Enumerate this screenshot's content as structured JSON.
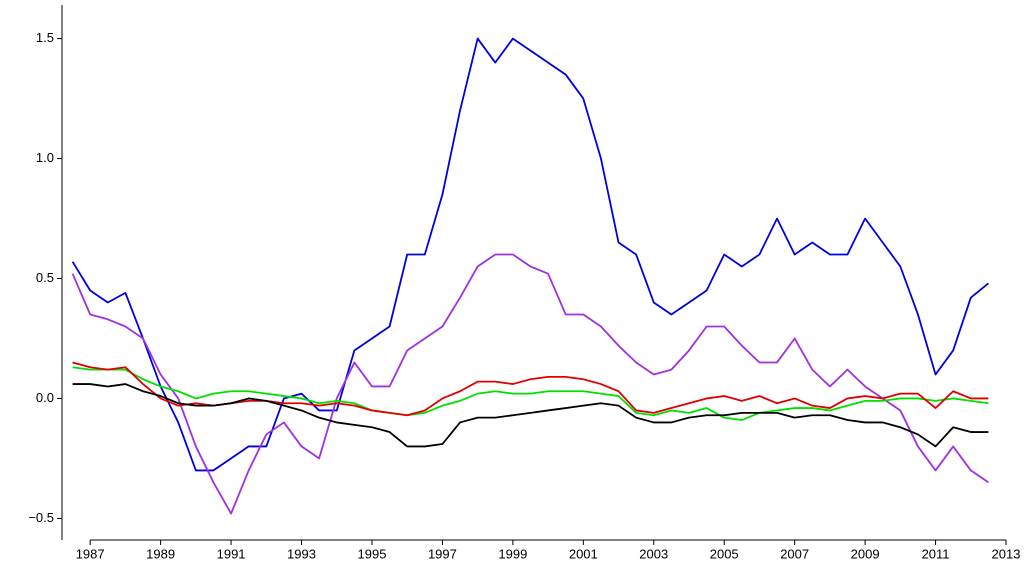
{
  "chart_data": {
    "type": "line",
    "x": [
      1986.5,
      1987.0,
      1987.5,
      1988.0,
      1988.5,
      1989.0,
      1989.5,
      1990.0,
      1990.5,
      1991.0,
      1991.5,
      1992.0,
      1992.5,
      1993.0,
      1993.5,
      1994.0,
      1994.5,
      1995.0,
      1995.5,
      1996.0,
      1996.5,
      1997.0,
      1997.5,
      1998.0,
      1998.5,
      1999.0,
      1999.5,
      2000.0,
      2000.5,
      2001.0,
      2001.5,
      2002.0,
      2002.5,
      2003.0,
      2003.5,
      2004.0,
      2004.5,
      2005.0,
      2005.5,
      2006.0,
      2006.5,
      2007.0,
      2007.5,
      2008.0,
      2008.5,
      2009.0,
      2009.5,
      2010.0,
      2010.5,
      2011.0,
      2011.5,
      2012.0,
      2012.5
    ],
    "series": [
      {
        "color": "#0000e0",
        "values": [
          0.57,
          0.45,
          0.4,
          0.44,
          0.25,
          0.05,
          -0.1,
          -0.3,
          -0.3,
          -0.25,
          -0.2,
          -0.2,
          0.0,
          0.02,
          -0.05,
          -0.05,
          0.2,
          0.25,
          0.3,
          0.6,
          0.6,
          0.85,
          1.2,
          1.5,
          1.4,
          1.5,
          1.45,
          1.4,
          1.35,
          1.25,
          1.0,
          0.65,
          0.6,
          0.4,
          0.35,
          0.4,
          0.45,
          0.6,
          0.55,
          0.6,
          0.75,
          0.6,
          0.65,
          0.6,
          0.6,
          0.75,
          0.65,
          0.55,
          0.35,
          0.1,
          0.2,
          0.42,
          0.48
        ]
      },
      {
        "color": "#a030e0",
        "values": [
          0.52,
          0.35,
          0.33,
          0.3,
          0.25,
          0.1,
          0.0,
          -0.2,
          -0.35,
          -0.48,
          -0.3,
          -0.15,
          -0.1,
          -0.2,
          -0.25,
          0.0,
          0.15,
          0.05,
          0.05,
          0.2,
          0.25,
          0.3,
          0.42,
          0.55,
          0.6,
          0.6,
          0.55,
          0.52,
          0.35,
          0.35,
          0.3,
          0.22,
          0.15,
          0.1,
          0.12,
          0.2,
          0.3,
          0.3,
          0.22,
          0.15,
          0.15,
          0.25,
          0.12,
          0.05,
          0.12,
          0.05,
          0.0,
          -0.05,
          -0.2,
          -0.3,
          -0.2,
          -0.3,
          -0.35
        ]
      },
      {
        "color": "#00e000",
        "values": [
          0.13,
          0.12,
          0.12,
          0.12,
          0.08,
          0.05,
          0.03,
          0.0,
          0.02,
          0.03,
          0.03,
          0.02,
          0.01,
          0.0,
          -0.02,
          -0.01,
          -0.02,
          -0.05,
          -0.06,
          -0.07,
          -0.06,
          -0.03,
          -0.01,
          0.02,
          0.03,
          0.02,
          0.02,
          0.03,
          0.03,
          0.03,
          0.02,
          0.01,
          -0.06,
          -0.07,
          -0.05,
          -0.06,
          -0.04,
          -0.08,
          -0.09,
          -0.06,
          -0.05,
          -0.04,
          -0.04,
          -0.05,
          -0.03,
          -0.01,
          -0.01,
          0.0,
          0.0,
          -0.01,
          0.0,
          -0.01,
          -0.02
        ]
      },
      {
        "color": "#e00000",
        "values": [
          0.15,
          0.13,
          0.12,
          0.13,
          0.06,
          0.0,
          -0.03,
          -0.02,
          -0.03,
          -0.02,
          -0.01,
          -0.01,
          -0.02,
          -0.02,
          -0.03,
          -0.02,
          -0.03,
          -0.05,
          -0.06,
          -0.07,
          -0.05,
          0.0,
          0.03,
          0.07,
          0.07,
          0.06,
          0.08,
          0.09,
          0.09,
          0.08,
          0.06,
          0.03,
          -0.05,
          -0.06,
          -0.04,
          -0.02,
          0.0,
          0.01,
          -0.01,
          0.01,
          -0.02,
          0.0,
          -0.03,
          -0.04,
          0.0,
          0.01,
          0.0,
          0.02,
          0.02,
          -0.04,
          0.03,
          0.0,
          0.0
        ]
      },
      {
        "color": "#000000",
        "values": [
          0.06,
          0.06,
          0.05,
          0.06,
          0.03,
          0.01,
          -0.02,
          -0.03,
          -0.03,
          -0.02,
          0.0,
          -0.01,
          -0.03,
          -0.05,
          -0.08,
          -0.1,
          -0.11,
          -0.12,
          -0.14,
          -0.2,
          -0.2,
          -0.19,
          -0.1,
          -0.08,
          -0.08,
          -0.07,
          -0.06,
          -0.05,
          -0.04,
          -0.03,
          -0.02,
          -0.03,
          -0.08,
          -0.1,
          -0.1,
          -0.08,
          -0.07,
          -0.07,
          -0.06,
          -0.06,
          -0.06,
          -0.08,
          -0.07,
          -0.07,
          -0.09,
          -0.1,
          -0.1,
          -0.12,
          -0.15,
          -0.2,
          -0.12,
          -0.14,
          -0.14
        ]
      }
    ],
    "xlim": [
      1986.2,
      2013.0
    ],
    "xticks": [
      1987,
      1989,
      1991,
      1993,
      1995,
      1997,
      1999,
      2001,
      2003,
      2005,
      2007,
      2009,
      2011,
      2013
    ],
    "ylim": [
      -0.59,
      1.64
    ],
    "yticks": [
      {
        "value": -0.5,
        "label": "−0.5"
      },
      {
        "value": 0,
        "label": "0.0"
      },
      0.5,
      {
        "value": 1,
        "label": "1.0"
      },
      1.5
    ],
    "grid": false
  }
}
